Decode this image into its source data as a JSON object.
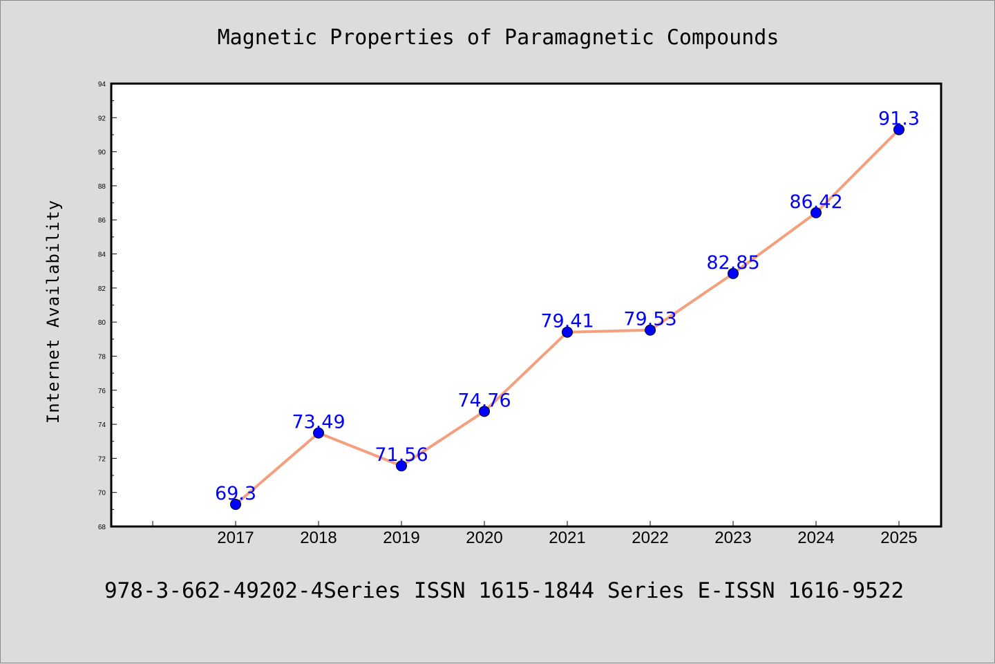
{
  "chart_data": {
    "type": "line",
    "title": "Magnetic Properties of Paramagnetic Compounds",
    "xlabel": "",
    "ylabel": "Internet Availability",
    "footer": "978-3-662-49202-4Series ISSN 1615-1844 Series E-ISSN 1616-9522",
    "x": [
      "2017",
      "2018",
      "2019",
      "2020",
      "2021",
      "2022",
      "2023",
      "2024",
      "2025"
    ],
    "values": [
      69.3,
      73.49,
      71.56,
      74.76,
      79.41,
      79.53,
      82.85,
      86.42,
      91.3
    ],
    "data_labels": [
      "69.3",
      "73.49",
      "71.56",
      "74.76",
      "79.41",
      "79.53",
      "82.85",
      "86.42",
      "91.3"
    ],
    "ylim": [
      68,
      94
    ],
    "yticks": [
      68,
      70,
      72,
      74,
      76,
      78,
      80,
      82,
      84,
      86,
      88,
      90,
      92,
      94
    ],
    "grid": false,
    "colors": {
      "line": "#f4a07e",
      "marker": "#0000ff",
      "label": "#0000ff",
      "background": "#dcdcdc",
      "plot_background": "#ffffff"
    }
  }
}
